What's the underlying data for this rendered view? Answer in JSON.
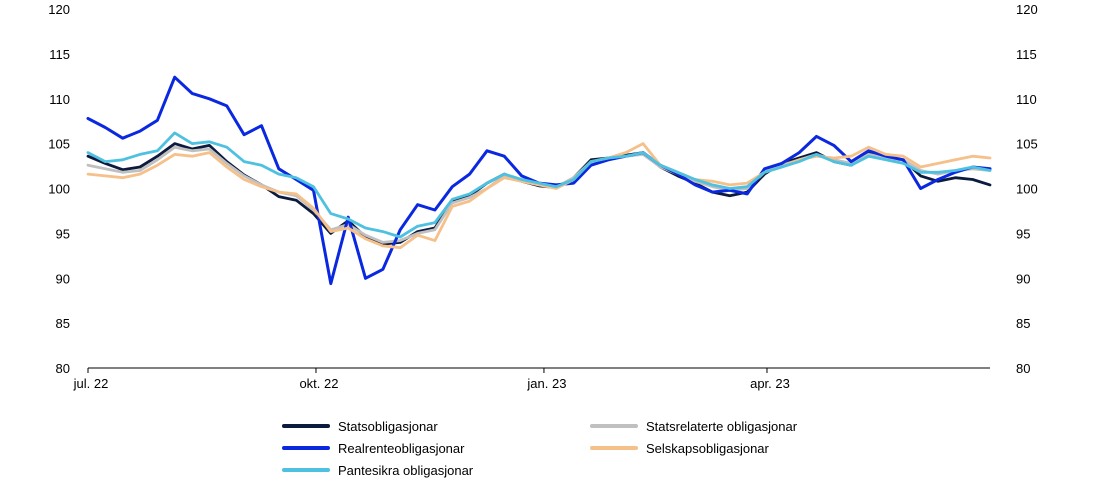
{
  "chart_data": {
    "type": "line",
    "title": "",
    "xlabel": "",
    "ylabel": "",
    "ylim": [
      80,
      120
    ],
    "yticks": [
      80,
      85,
      90,
      95,
      100,
      105,
      110,
      115,
      120
    ],
    "y_axis_right": true,
    "grid": false,
    "legend_position": "bottom",
    "x_start": "2022-07-01",
    "x_end": "2023-06-30",
    "xticks": [
      {
        "date": "2022-07-01",
        "label": "jul. 22"
      },
      {
        "date": "2022-10-01",
        "label": "okt. 22"
      },
      {
        "date": "2023-01-01",
        "label": "jan. 23"
      },
      {
        "date": "2023-04-01",
        "label": "apr. 23"
      }
    ],
    "series": [
      {
        "name": "Statsobligasjonar",
        "color": "#0b1a3d",
        "points": [
          [
            "2022-07-01",
            103.6
          ],
          [
            "2022-07-08",
            102.8
          ],
          [
            "2022-07-15",
            102.1
          ],
          [
            "2022-07-22",
            102.4
          ],
          [
            "2022-07-29",
            103.6
          ],
          [
            "2022-08-05",
            105.0
          ],
          [
            "2022-08-12",
            104.4
          ],
          [
            "2022-08-19",
            104.8
          ],
          [
            "2022-08-26",
            103.0
          ],
          [
            "2022-09-02",
            101.5
          ],
          [
            "2022-09-09",
            100.4
          ],
          [
            "2022-09-16",
            99.1
          ],
          [
            "2022-09-23",
            98.7
          ],
          [
            "2022-09-30",
            97.2
          ],
          [
            "2022-10-07",
            95.0
          ],
          [
            "2022-10-14",
            96.4
          ],
          [
            "2022-10-21",
            94.6
          ],
          [
            "2022-10-28",
            93.8
          ],
          [
            "2022-11-04",
            94.0
          ],
          [
            "2022-11-11",
            95.2
          ],
          [
            "2022-11-18",
            95.6
          ],
          [
            "2022-11-25",
            98.6
          ],
          [
            "2022-12-02",
            99.2
          ],
          [
            "2022-12-09",
            100.6
          ],
          [
            "2022-12-16",
            101.6
          ],
          [
            "2022-12-23",
            100.8
          ],
          [
            "2022-12-30",
            100.3
          ],
          [
            "2023-01-06",
            100.1
          ],
          [
            "2023-01-13",
            101.2
          ],
          [
            "2023-01-20",
            103.2
          ],
          [
            "2023-01-27",
            103.4
          ],
          [
            "2023-02-03",
            103.7
          ],
          [
            "2023-02-10",
            104.0
          ],
          [
            "2023-02-17",
            102.4
          ],
          [
            "2023-02-24",
            101.4
          ],
          [
            "2023-03-03",
            100.6
          ],
          [
            "2023-03-10",
            99.6
          ],
          [
            "2023-03-17",
            99.2
          ],
          [
            "2023-03-24",
            99.6
          ],
          [
            "2023-03-31",
            101.6
          ],
          [
            "2023-04-07",
            102.8
          ],
          [
            "2023-04-14",
            103.4
          ],
          [
            "2023-04-21",
            104.0
          ],
          [
            "2023-04-28",
            103.0
          ],
          [
            "2023-05-05",
            102.6
          ],
          [
            "2023-05-12",
            103.9
          ],
          [
            "2023-05-19",
            103.4
          ],
          [
            "2023-05-26",
            103.2
          ],
          [
            "2023-06-02",
            101.4
          ],
          [
            "2023-06-09",
            100.8
          ],
          [
            "2023-06-16",
            101.2
          ],
          [
            "2023-06-23",
            101.0
          ],
          [
            "2023-06-30",
            100.4
          ]
        ]
      },
      {
        "name": "Statsrelaterte obligasjonar",
        "color": "#c0c0c0",
        "points": [
          [
            "2022-07-01",
            102.6
          ],
          [
            "2022-07-08",
            102.2
          ],
          [
            "2022-07-15",
            101.8
          ],
          [
            "2022-07-22",
            102.0
          ],
          [
            "2022-07-29",
            103.2
          ],
          [
            "2022-08-05",
            104.6
          ],
          [
            "2022-08-12",
            104.2
          ],
          [
            "2022-08-19",
            104.4
          ],
          [
            "2022-08-26",
            102.8
          ],
          [
            "2022-09-02",
            101.4
          ],
          [
            "2022-09-09",
            100.4
          ],
          [
            "2022-09-16",
            99.6
          ],
          [
            "2022-09-23",
            99.2
          ],
          [
            "2022-09-30",
            97.6
          ],
          [
            "2022-10-07",
            95.4
          ],
          [
            "2022-10-14",
            96.0
          ],
          [
            "2022-10-21",
            94.8
          ],
          [
            "2022-10-28",
            94.0
          ],
          [
            "2022-11-04",
            94.2
          ],
          [
            "2022-11-11",
            95.0
          ],
          [
            "2022-11-18",
            95.4
          ],
          [
            "2022-11-25",
            98.4
          ],
          [
            "2022-12-02",
            99.0
          ],
          [
            "2022-12-09",
            100.0
          ],
          [
            "2022-12-16",
            101.4
          ],
          [
            "2022-12-23",
            100.8
          ],
          [
            "2022-12-30",
            100.4
          ],
          [
            "2023-01-06",
            100.2
          ],
          [
            "2023-01-13",
            101.2
          ],
          [
            "2023-01-20",
            103.0
          ],
          [
            "2023-01-27",
            103.2
          ],
          [
            "2023-02-03",
            103.6
          ],
          [
            "2023-02-10",
            103.8
          ],
          [
            "2023-02-17",
            102.4
          ],
          [
            "2023-02-24",
            101.6
          ],
          [
            "2023-03-03",
            100.8
          ],
          [
            "2023-03-10",
            100.2
          ],
          [
            "2023-03-17",
            99.8
          ],
          [
            "2023-03-24",
            100.0
          ],
          [
            "2023-03-31",
            101.8
          ],
          [
            "2023-04-07",
            102.6
          ],
          [
            "2023-04-14",
            103.2
          ],
          [
            "2023-04-21",
            103.8
          ],
          [
            "2023-04-28",
            103.2
          ],
          [
            "2023-05-05",
            102.8
          ],
          [
            "2023-05-12",
            103.8
          ],
          [
            "2023-05-19",
            103.4
          ],
          [
            "2023-05-26",
            103.2
          ],
          [
            "2023-06-02",
            102.0
          ],
          [
            "2023-06-09",
            101.6
          ],
          [
            "2023-06-16",
            102.0
          ],
          [
            "2023-06-23",
            102.2
          ],
          [
            "2023-06-30",
            102.0
          ]
        ]
      },
      {
        "name": "Realrenteobligasjonar",
        "color": "#0a28e0",
        "points": [
          [
            "2022-07-01",
            107.8
          ],
          [
            "2022-07-08",
            106.8
          ],
          [
            "2022-07-15",
            105.6
          ],
          [
            "2022-07-22",
            106.4
          ],
          [
            "2022-07-29",
            107.6
          ],
          [
            "2022-08-05",
            112.4
          ],
          [
            "2022-08-12",
            110.6
          ],
          [
            "2022-08-19",
            110.0
          ],
          [
            "2022-08-26",
            109.2
          ],
          [
            "2022-09-02",
            106.0
          ],
          [
            "2022-09-09",
            107.0
          ],
          [
            "2022-09-16",
            102.2
          ],
          [
            "2022-09-23",
            101.0
          ],
          [
            "2022-09-30",
            99.8
          ],
          [
            "2022-10-07",
            89.4
          ],
          [
            "2022-10-14",
            96.8
          ],
          [
            "2022-10-21",
            90.0
          ],
          [
            "2022-10-28",
            91.0
          ],
          [
            "2022-11-04",
            95.4
          ],
          [
            "2022-11-11",
            98.2
          ],
          [
            "2022-11-18",
            97.6
          ],
          [
            "2022-11-25",
            100.2
          ],
          [
            "2022-12-02",
            101.6
          ],
          [
            "2022-12-09",
            104.2
          ],
          [
            "2022-12-16",
            103.6
          ],
          [
            "2022-12-23",
            101.4
          ],
          [
            "2022-12-30",
            100.6
          ],
          [
            "2023-01-06",
            100.4
          ],
          [
            "2023-01-13",
            100.6
          ],
          [
            "2023-01-20",
            102.6
          ],
          [
            "2023-01-27",
            103.2
          ],
          [
            "2023-02-03",
            103.6
          ],
          [
            "2023-02-10",
            104.0
          ],
          [
            "2023-02-17",
            102.6
          ],
          [
            "2023-02-24",
            101.6
          ],
          [
            "2023-03-03",
            100.4
          ],
          [
            "2023-03-10",
            99.6
          ],
          [
            "2023-03-17",
            99.8
          ],
          [
            "2023-03-24",
            99.4
          ],
          [
            "2023-03-31",
            102.2
          ],
          [
            "2023-04-07",
            102.8
          ],
          [
            "2023-04-14",
            104.0
          ],
          [
            "2023-04-21",
            105.8
          ],
          [
            "2023-04-28",
            104.8
          ],
          [
            "2023-05-05",
            103.0
          ],
          [
            "2023-05-12",
            104.2
          ],
          [
            "2023-05-19",
            103.6
          ],
          [
            "2023-05-26",
            103.2
          ],
          [
            "2023-06-02",
            100.0
          ],
          [
            "2023-06-09",
            101.0
          ],
          [
            "2023-06-16",
            101.8
          ],
          [
            "2023-06-23",
            102.4
          ],
          [
            "2023-06-30",
            102.2
          ]
        ]
      },
      {
        "name": "Selskapsobligasjonar",
        "color": "#f6c08a",
        "points": [
          [
            "2022-07-01",
            101.6
          ],
          [
            "2022-07-08",
            101.4
          ],
          [
            "2022-07-15",
            101.2
          ],
          [
            "2022-07-22",
            101.6
          ],
          [
            "2022-07-29",
            102.6
          ],
          [
            "2022-08-05",
            103.8
          ],
          [
            "2022-08-12",
            103.6
          ],
          [
            "2022-08-19",
            104.0
          ],
          [
            "2022-08-26",
            102.4
          ],
          [
            "2022-09-02",
            101.0
          ],
          [
            "2022-09-09",
            100.2
          ],
          [
            "2022-09-16",
            99.6
          ],
          [
            "2022-09-23",
            99.4
          ],
          [
            "2022-09-30",
            97.8
          ],
          [
            "2022-10-07",
            95.2
          ],
          [
            "2022-10-14",
            95.6
          ],
          [
            "2022-10-21",
            94.4
          ],
          [
            "2022-10-28",
            93.6
          ],
          [
            "2022-11-04",
            93.4
          ],
          [
            "2022-11-11",
            94.8
          ],
          [
            "2022-11-18",
            94.2
          ],
          [
            "2022-11-25",
            98.0
          ],
          [
            "2022-12-02",
            98.6
          ],
          [
            "2022-12-09",
            100.0
          ],
          [
            "2022-12-16",
            101.2
          ],
          [
            "2022-12-23",
            100.8
          ],
          [
            "2022-12-30",
            100.4
          ],
          [
            "2023-01-06",
            100.0
          ],
          [
            "2023-01-13",
            101.0
          ],
          [
            "2023-01-20",
            103.0
          ],
          [
            "2023-01-27",
            103.4
          ],
          [
            "2023-02-03",
            104.0
          ],
          [
            "2023-02-10",
            105.0
          ],
          [
            "2023-02-17",
            102.6
          ],
          [
            "2023-02-24",
            101.8
          ],
          [
            "2023-03-03",
            101.0
          ],
          [
            "2023-03-10",
            100.8
          ],
          [
            "2023-03-17",
            100.4
          ],
          [
            "2023-03-24",
            100.6
          ],
          [
            "2023-03-31",
            101.8
          ],
          [
            "2023-04-07",
            102.4
          ],
          [
            "2023-04-14",
            103.2
          ],
          [
            "2023-04-21",
            103.6
          ],
          [
            "2023-04-28",
            103.4
          ],
          [
            "2023-05-05",
            103.6
          ],
          [
            "2023-05-12",
            104.6
          ],
          [
            "2023-05-19",
            103.8
          ],
          [
            "2023-05-26",
            103.6
          ],
          [
            "2023-06-02",
            102.4
          ],
          [
            "2023-06-09",
            102.8
          ],
          [
            "2023-06-16",
            103.2
          ],
          [
            "2023-06-23",
            103.6
          ],
          [
            "2023-06-30",
            103.4
          ]
        ]
      },
      {
        "name": "Pantesikra obligasjonar",
        "color": "#4fc1e0",
        "points": [
          [
            "2022-07-01",
            104.0
          ],
          [
            "2022-07-08",
            103.0
          ],
          [
            "2022-07-15",
            103.2
          ],
          [
            "2022-07-22",
            103.8
          ],
          [
            "2022-07-29",
            104.2
          ],
          [
            "2022-08-05",
            106.2
          ],
          [
            "2022-08-12",
            105.0
          ],
          [
            "2022-08-19",
            105.2
          ],
          [
            "2022-08-26",
            104.6
          ],
          [
            "2022-09-02",
            103.0
          ],
          [
            "2022-09-09",
            102.6
          ],
          [
            "2022-09-16",
            101.6
          ],
          [
            "2022-09-23",
            101.2
          ],
          [
            "2022-09-30",
            100.2
          ],
          [
            "2022-10-07",
            97.2
          ],
          [
            "2022-10-14",
            96.6
          ],
          [
            "2022-10-21",
            95.6
          ],
          [
            "2022-10-28",
            95.2
          ],
          [
            "2022-11-04",
            94.6
          ],
          [
            "2022-11-11",
            95.8
          ],
          [
            "2022-11-18",
            96.2
          ],
          [
            "2022-11-25",
            98.8
          ],
          [
            "2022-12-02",
            99.4
          ],
          [
            "2022-12-09",
            100.6
          ],
          [
            "2022-12-16",
            101.6
          ],
          [
            "2022-12-23",
            101.0
          ],
          [
            "2022-12-30",
            100.6
          ],
          [
            "2023-01-06",
            100.2
          ],
          [
            "2023-01-13",
            101.0
          ],
          [
            "2023-01-20",
            103.0
          ],
          [
            "2023-01-27",
            103.4
          ],
          [
            "2023-02-03",
            103.6
          ],
          [
            "2023-02-10",
            104.0
          ],
          [
            "2023-02-17",
            102.6
          ],
          [
            "2023-02-24",
            101.8
          ],
          [
            "2023-03-03",
            101.0
          ],
          [
            "2023-03-10",
            100.4
          ],
          [
            "2023-03-17",
            100.0
          ],
          [
            "2023-03-24",
            100.2
          ],
          [
            "2023-03-31",
            101.8
          ],
          [
            "2023-04-07",
            102.4
          ],
          [
            "2023-04-14",
            103.0
          ],
          [
            "2023-04-21",
            103.8
          ],
          [
            "2023-04-28",
            103.0
          ],
          [
            "2023-05-05",
            102.6
          ],
          [
            "2023-05-12",
            103.6
          ],
          [
            "2023-05-19",
            103.2
          ],
          [
            "2023-05-26",
            102.8
          ],
          [
            "2023-06-02",
            101.8
          ],
          [
            "2023-06-09",
            101.8
          ],
          [
            "2023-06-16",
            102.0
          ],
          [
            "2023-06-23",
            102.4
          ],
          [
            "2023-06-30",
            102.0
          ]
        ]
      }
    ]
  }
}
